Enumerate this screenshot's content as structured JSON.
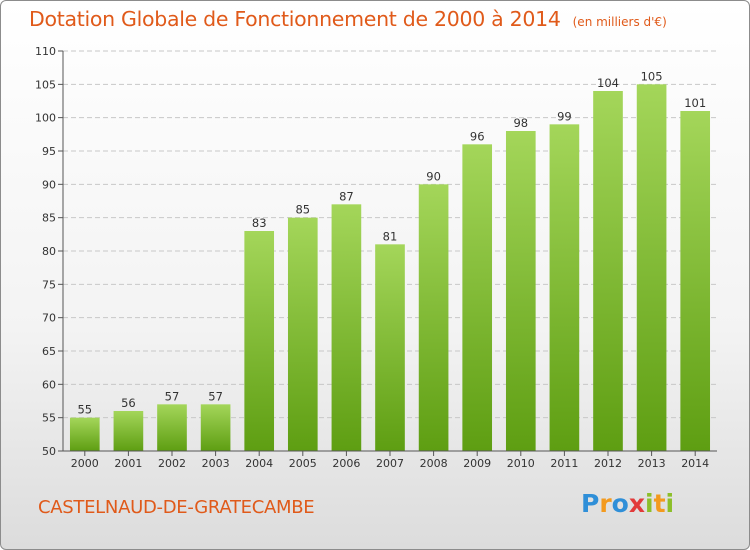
{
  "header": {
    "title": "Dotation Globale de Fonctionnement de 2000 à 2014",
    "subtitle": "(en milliers d'€)"
  },
  "footer": {
    "commune": "CASTELNAUD-DE-GRATECAMBE",
    "logo_letters": [
      "P",
      "r",
      "o",
      "x",
      "i",
      "t",
      "i"
    ]
  },
  "colors": {
    "title": "#e05a1a",
    "bar_top": "#a4d65a",
    "bar_bottom": "#5e9e12"
  },
  "chart_data": {
    "type": "bar",
    "title": "Dotation Globale de Fonctionnement de 2000 à 2014",
    "subtitle": "(en milliers d'€)",
    "categories": [
      "2000",
      "2001",
      "2002",
      "2003",
      "2004",
      "2005",
      "2006",
      "2007",
      "2008",
      "2009",
      "2010",
      "2011",
      "2012",
      "2013",
      "2014"
    ],
    "values": [
      55,
      56,
      57,
      57,
      83,
      85,
      87,
      81,
      90,
      96,
      98,
      99,
      104,
      105,
      101
    ],
    "ylim": [
      50,
      110
    ],
    "yticks": [
      50,
      55,
      60,
      65,
      70,
      75,
      80,
      85,
      90,
      95,
      100,
      105,
      110
    ],
    "grid": "horizontal",
    "data_labels": true,
    "legend": "none"
  }
}
